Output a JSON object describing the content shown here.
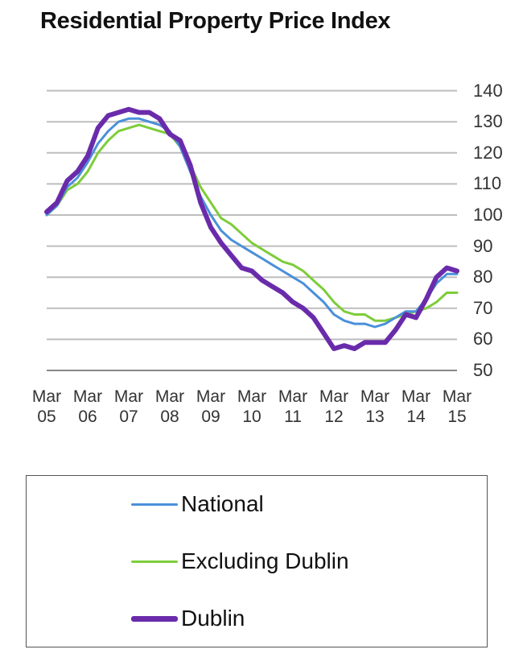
{
  "chart_data": {
    "type": "line",
    "title": "Residential Property Price Index",
    "xlabel": "",
    "ylabel": "",
    "ylim": [
      50,
      140
    ],
    "yticks": [
      140,
      130,
      120,
      110,
      100,
      90,
      80,
      70,
      60,
      50
    ],
    "y_axis_position": "right",
    "grid": true,
    "legend_position": "bottom",
    "x_tick_labels": [
      {
        "month": "Mar",
        "year": "05"
      },
      {
        "month": "Mar",
        "year": "06"
      },
      {
        "month": "Mar",
        "year": "07"
      },
      {
        "month": "Mar",
        "year": "08"
      },
      {
        "month": "Mar",
        "year": "09"
      },
      {
        "month": "Mar",
        "year": "10"
      },
      {
        "month": "Mar",
        "year": "11"
      },
      {
        "month": "Mar",
        "year": "12"
      },
      {
        "month": "Mar",
        "year": "13"
      },
      {
        "month": "Mar",
        "year": "14"
      },
      {
        "month": "Mar",
        "year": "15"
      }
    ],
    "x": [
      "Mar 05",
      "Jun 05",
      "Sep 05",
      "Dec 05",
      "Mar 06",
      "Jun 06",
      "Sep 06",
      "Dec 06",
      "Mar 07",
      "Jun 07",
      "Sep 07",
      "Dec 07",
      "Mar 08",
      "Jun 08",
      "Sep 08",
      "Dec 08",
      "Mar 09",
      "Jun 09",
      "Sep 09",
      "Dec 09",
      "Mar 10",
      "Jun 10",
      "Sep 10",
      "Dec 10",
      "Mar 11",
      "Jun 11",
      "Sep 11",
      "Dec 11",
      "Mar 12",
      "Jun 12",
      "Sep 12",
      "Dec 12",
      "Mar 13",
      "Jun 13",
      "Sep 13",
      "Dec 13",
      "Mar 14",
      "Jun 14",
      "Sep 14",
      "Dec 14",
      "Mar 15"
    ],
    "series": [
      {
        "name": "National",
        "color": "#4a90d9",
        "width": 3,
        "values": [
          100,
          103,
          109,
          112,
          117,
          123,
          127,
          130,
          131,
          131,
          130,
          129,
          127,
          122,
          114,
          106,
          100,
          95,
          92,
          90,
          88,
          86,
          84,
          82,
          80,
          78,
          75,
          72,
          68,
          66,
          65,
          65,
          64,
          65,
          67,
          69,
          69,
          73,
          78,
          81,
          81
        ]
      },
      {
        "name": "Excluding Dublin",
        "color": "#7dcc3a",
        "width": 3,
        "values": [
          100,
          103,
          108,
          110,
          114,
          120,
          124,
          127,
          128,
          129,
          128,
          127,
          126,
          122,
          116,
          109,
          104,
          99,
          97,
          94,
          91,
          89,
          87,
          85,
          84,
          82,
          79,
          76,
          72,
          69,
          68,
          68,
          66,
          66,
          67,
          68,
          69,
          70,
          72,
          75,
          75
        ]
      },
      {
        "name": "Dublin",
        "color": "#6a2bab",
        "width": 6,
        "values": [
          101,
          104,
          111,
          114,
          119,
          128,
          132,
          133,
          134,
          133,
          133,
          131,
          126,
          124,
          116,
          104,
          96,
          91,
          87,
          83,
          82,
          79,
          77,
          75,
          72,
          70,
          67,
          62,
          57,
          58,
          57,
          59,
          59,
          59,
          63,
          68,
          67,
          73,
          80,
          83,
          82
        ]
      }
    ]
  },
  "legend": {
    "items": [
      {
        "label": "National",
        "color": "#4a90d9"
      },
      {
        "label": "Excluding Dublin",
        "color": "#7dcc3a"
      },
      {
        "label": "Dublin",
        "color": "#6a2bab"
      }
    ]
  }
}
